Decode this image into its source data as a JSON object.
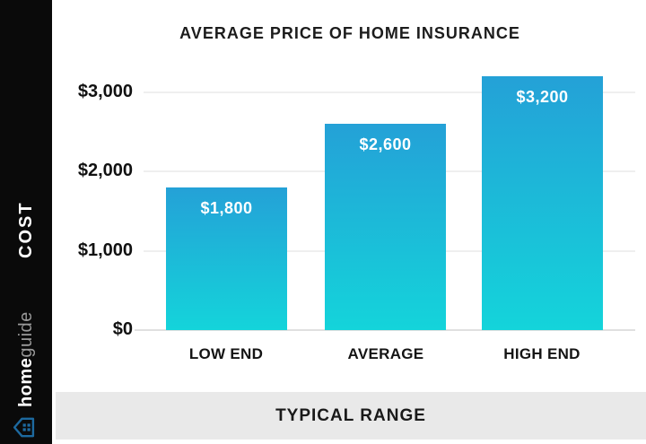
{
  "sidebar": {
    "cost_label": "COST",
    "brand_bold": "home",
    "brand_light": "guide"
  },
  "chart_data": {
    "type": "bar",
    "title": "AVERAGE PRICE OF HOME INSURANCE",
    "categories": [
      "LOW END",
      "AVERAGE",
      "HIGH END"
    ],
    "values": [
      1800,
      2600,
      3200
    ],
    "value_labels": [
      "$1,800",
      "$2,600",
      "$3,200"
    ],
    "yticks": [
      {
        "value": 3000,
        "label": "$3,000"
      },
      {
        "value": 2000,
        "label": "$2,000"
      },
      {
        "value": 1000,
        "label": "$1,000"
      },
      {
        "value": 0,
        "label": "$0"
      }
    ],
    "ylim": [
      0,
      3200
    ],
    "xlabel": "",
    "ylabel": "COST",
    "grid": true,
    "legend": false
  },
  "footer": {
    "label": "TYPICAL RANGE"
  },
  "colors": {
    "bar_top": "#24a1d7",
    "bar_bottom": "#14d4da",
    "brand_blue": "#1d699f",
    "footer_bg": "#e9e9e9",
    "sidebar_bg": "#0a0a0a"
  }
}
